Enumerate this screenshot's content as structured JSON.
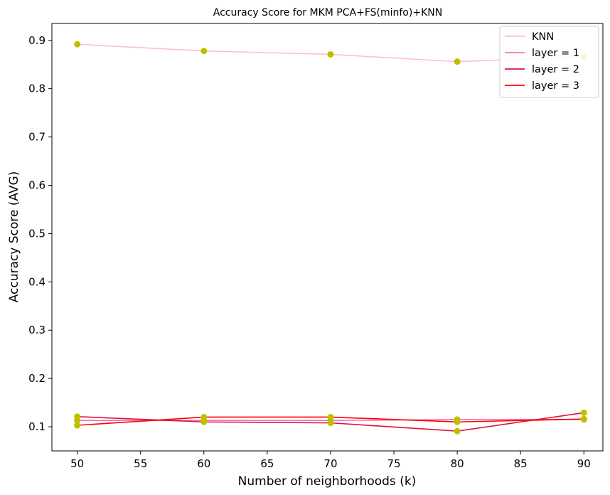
{
  "chart_data": {
    "type": "line",
    "title": "Accuracy Score for MKM PCA+FS(minfo)+KNN",
    "xlabel": "Number of neighborhoods (k)",
    "ylabel": "Accuracy Score (AVG)",
    "x": [
      50,
      60,
      70,
      80,
      90
    ],
    "xlim": [
      48,
      91.5
    ],
    "ylim": [
      0.05,
      0.935
    ],
    "xticks": [
      "50",
      "55",
      "60",
      "65",
      "70",
      "75",
      "80",
      "85",
      "90"
    ],
    "yticks": [
      "0.1",
      "0.2",
      "0.3",
      "0.4",
      "0.5",
      "0.6",
      "0.7",
      "0.8",
      "0.9"
    ],
    "grid": false,
    "legend_position": "top-right",
    "marker_color": "#bfbf00",
    "series": [
      {
        "name": "KNN",
        "color": "#ffc0cb",
        "values": [
          0.892,
          0.878,
          0.871,
          0.856,
          0.866
        ]
      },
      {
        "name": "layer = 1",
        "color": "#ff69b4",
        "values": [
          0.113,
          0.113,
          0.113,
          0.115,
          0.115
        ]
      },
      {
        "name": "layer = 2",
        "color": "#dc143c",
        "values": [
          0.121,
          0.11,
          0.108,
          0.091,
          0.129
        ]
      },
      {
        "name": "layer = 3",
        "color": "#ff0000",
        "values": [
          0.103,
          0.12,
          0.12,
          0.11,
          0.116
        ]
      }
    ]
  }
}
